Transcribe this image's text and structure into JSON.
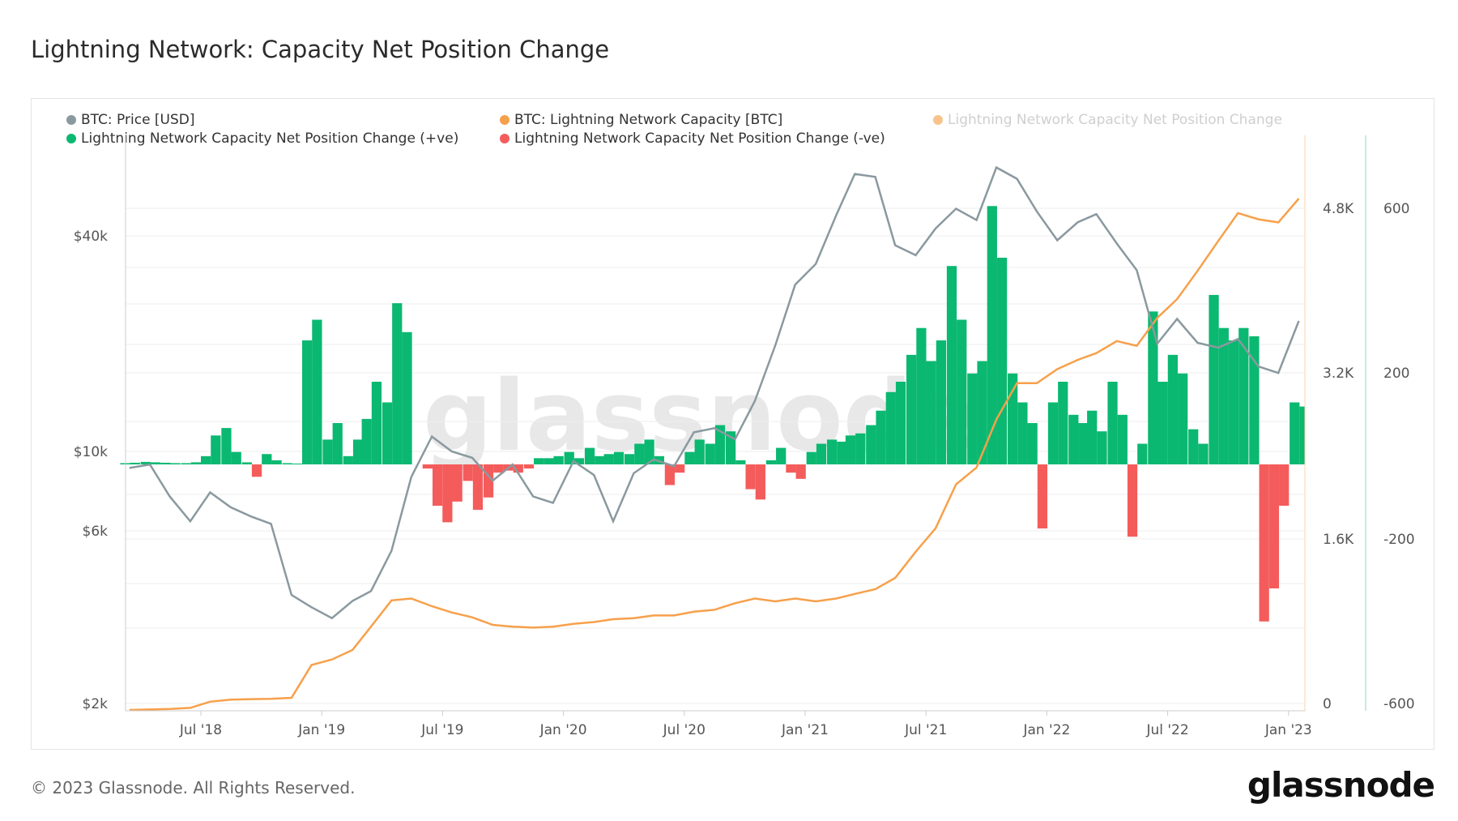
{
  "title": "Lightning Network: Capacity Net Position Change",
  "footer": "© 2023 Glassnode. All Rights Reserved.",
  "logo": "glassnode",
  "watermark": "glassnode",
  "colors": {
    "price": "#8a999f",
    "capacity": "#f7a04b",
    "positive": "#0bb871",
    "negative": "#f45c5c",
    "net_legend": "#f7c48c"
  },
  "legend": [
    {
      "label": "BTC: Price [USD]",
      "color": "#8a999f"
    },
    {
      "label": "BTC: Lightning Network Capacity [BTC]",
      "color": "#f7a04b"
    },
    {
      "label": "Lightning Network Capacity Net Position Change",
      "color": "#f7c48c",
      "disabled": true
    },
    {
      "label": "Lightning Network Capacity Net Position Change (+ve)",
      "color": "#0bb871"
    },
    {
      "label": "Lightning Network Capacity Net Position Change (-ve)",
      "color": "#f45c5c"
    }
  ],
  "chart_data": {
    "type": "bar+line",
    "x_ticks": [
      "Jul '18",
      "Jan '19",
      "Jul '19",
      "Jan '20",
      "Jul '20",
      "Jan '21",
      "Jul '21",
      "Jan '22",
      "Jul '22",
      "Jan '23"
    ],
    "price_axis": {
      "scale": "log",
      "ticks": [
        "$2k",
        "$6k",
        "$10k",
        "$40k"
      ]
    },
    "capacity_axis": {
      "ticks": [
        "0",
        "1.6K",
        "3.2K",
        "4.8K"
      ]
    },
    "net_axis": {
      "ticks": [
        "-600",
        "-200",
        "200",
        "600"
      ]
    },
    "grid": true,
    "legend_position": "top",
    "months": [
      "2018-03",
      "2018-04",
      "2018-05",
      "2018-06",
      "2018-07",
      "2018-08",
      "2018-09",
      "2018-10",
      "2018-11",
      "2018-12",
      "2019-01",
      "2019-02",
      "2019-03",
      "2019-04",
      "2019-05",
      "2019-06",
      "2019-07",
      "2019-08",
      "2019-09",
      "2019-10",
      "2019-11",
      "2019-12",
      "2020-01",
      "2020-02",
      "2020-03",
      "2020-04",
      "2020-05",
      "2020-06",
      "2020-07",
      "2020-08",
      "2020-09",
      "2020-10",
      "2020-11",
      "2020-12",
      "2021-01",
      "2021-02",
      "2021-03",
      "2021-04",
      "2021-05",
      "2021-06",
      "2021-07",
      "2021-08",
      "2021-09",
      "2021-10",
      "2021-11",
      "2021-12",
      "2022-01",
      "2022-02",
      "2022-03",
      "2022-04",
      "2022-05",
      "2022-06",
      "2022-07",
      "2022-08",
      "2022-09",
      "2022-10",
      "2022-11",
      "2022-12",
      "2023-01"
    ],
    "price_usd": [
      9000,
      9200,
      7500,
      6400,
      7700,
      7000,
      6600,
      6300,
      4000,
      3700,
      3450,
      3850,
      4100,
      5300,
      8500,
      11000,
      10000,
      9600,
      8300,
      9200,
      7500,
      7200,
      9400,
      8600,
      6400,
      8700,
      9500,
      9100,
      11300,
      11600,
      10800,
      13800,
      19700,
      29000,
      33100,
      45200,
      58800,
      57700,
      37300,
      35000,
      41500,
      47100,
      43800,
      61300,
      57000,
      46300,
      38500,
      43200,
      45500,
      37700,
      31800,
      19900,
      23300,
      20000,
      19400,
      20500,
      17200,
      16500,
      23000
    ],
    "capacity_btc": [
      0,
      5,
      10,
      20,
      80,
      100,
      105,
      108,
      117,
      433,
      487,
      578,
      803,
      1056,
      1074,
      1000,
      940,
      893,
      820,
      803,
      794,
      803,
      830,
      848,
      875,
      884,
      911,
      911,
      947,
      966,
      1029,
      1074,
      1047,
      1074,
      1047,
      1074,
      1119,
      1164,
      1273,
      1525,
      1751,
      2175,
      2337,
      2800,
      3150,
      3150,
      3285,
      3375,
      3440,
      3556,
      3510,
      3780,
      3960,
      4233,
      4520,
      4790,
      4730,
      4700,
      4930
    ],
    "net_change_half_month": [
      [
        3,
        4
      ],
      [
        6,
        5
      ],
      [
        4,
        3
      ],
      [
        3,
        5
      ],
      [
        20,
        70
      ],
      [
        88,
        30
      ],
      [
        5,
        -30
      ],
      [
        25,
        10
      ],
      [
        3,
        2
      ],
      [
        300,
        350
      ],
      [
        60,
        100
      ],
      [
        20,
        60
      ],
      [
        110,
        200
      ],
      [
        150,
        390
      ],
      [
        320,
        0
      ],
      [
        -10,
        -100
      ],
      [
        -140,
        -90
      ],
      [
        -40,
        -110
      ],
      [
        -80,
        -20
      ],
      [
        -15,
        -20
      ],
      [
        -10,
        15
      ],
      [
        15,
        20
      ],
      [
        30,
        15
      ],
      [
        40,
        20
      ],
      [
        25,
        30
      ],
      [
        25,
        50
      ],
      [
        60,
        20
      ],
      [
        -50,
        -20
      ],
      [
        30,
        60
      ],
      [
        50,
        95
      ],
      [
        80,
        10
      ],
      [
        -60,
        -85
      ],
      [
        10,
        40
      ],
      [
        -20,
        -35
      ],
      [
        30,
        50
      ],
      [
        60,
        55
      ],
      [
        70,
        75
      ],
      [
        95,
        130
      ],
      [
        175,
        200
      ],
      [
        265,
        330
      ],
      [
        250,
        300
      ],
      [
        480,
        350
      ],
      [
        220,
        250
      ],
      [
        625,
        500
      ],
      [
        220,
        150
      ],
      [
        100,
        -155
      ],
      [
        150,
        200
      ],
      [
        120,
        100
      ],
      [
        130,
        80
      ],
      [
        200,
        120
      ],
      [
        -175,
        50
      ],
      [
        370,
        200
      ],
      [
        265,
        220
      ],
      [
        85,
        50
      ],
      [
        410,
        330
      ],
      [
        300,
        330
      ],
      [
        310,
        -380
      ],
      [
        -300,
        -100
      ],
      [
        150,
        140
      ]
    ]
  }
}
